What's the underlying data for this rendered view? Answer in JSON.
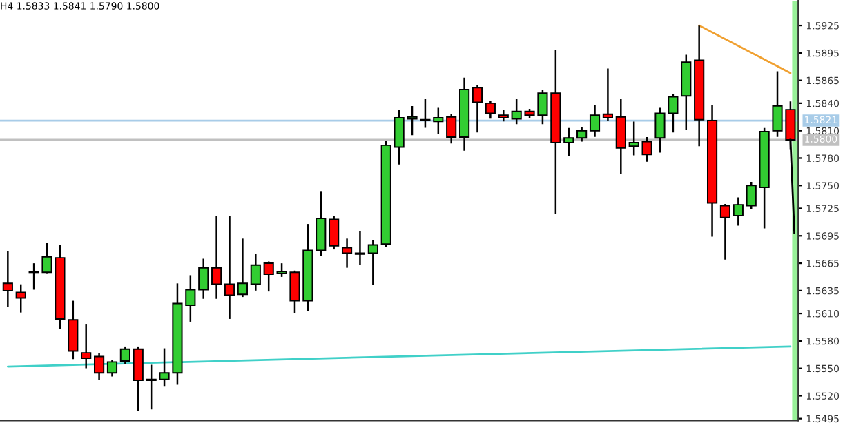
{
  "chart_data": {
    "type": "candlestick",
    "title": "H4 1.5833 1.5841 1.5790 1.5800",
    "categories": [
      null,
      null,
      null,
      null,
      null,
      null,
      null,
      null,
      null,
      null,
      null,
      null,
      null,
      null,
      null,
      null,
      null,
      null,
      null,
      null,
      null,
      null,
      null,
      null,
      null,
      null,
      null,
      null,
      null,
      null,
      null,
      null,
      null,
      null,
      null,
      null,
      null,
      null,
      null,
      null,
      null,
      null,
      null,
      null,
      null,
      null,
      null,
      null,
      null,
      null,
      null,
      null,
      null,
      null,
      null,
      null,
      null,
      null,
      null,
      null,
      null
    ],
    "ohlc": [
      [
        1.5643,
        1.5677,
        1.5618,
        1.5635
      ],
      [
        1.5633,
        1.5641,
        1.5612,
        1.5627
      ],
      [
        1.5656,
        1.5664,
        1.5637,
        1.5655
      ],
      [
        1.5655,
        1.5686,
        1.5655,
        1.5672
      ],
      [
        1.5671,
        1.5684,
        1.5594,
        1.5604
      ],
      [
        1.5603,
        1.5623,
        1.5561,
        1.5569
      ],
      [
        1.5567,
        1.5597,
        1.5551,
        1.5561
      ],
      [
        1.5563,
        1.5566,
        1.5538,
        1.5545
      ],
      [
        1.5545,
        1.5558,
        1.5542,
        1.5557
      ],
      [
        1.5558,
        1.5573,
        1.5556,
        1.5571
      ],
      [
        1.5571,
        1.5573,
        1.5504,
        1.5537
      ],
      [
        1.5538,
        1.5553,
        1.5506,
        1.5537
      ],
      [
        1.5538,
        1.5571,
        1.5531,
        1.5545
      ],
      [
        1.5545,
        1.5642,
        1.5533,
        1.5621
      ],
      [
        1.5619,
        1.5651,
        1.5602,
        1.5636
      ],
      [
        1.5636,
        1.5669,
        1.5627,
        1.566
      ],
      [
        1.566,
        1.5716,
        1.5627,
        1.5642
      ],
      [
        1.5642,
        1.5716,
        1.5605,
        1.563
      ],
      [
        1.5631,
        1.5691,
        1.5629,
        1.5643
      ],
      [
        1.5642,
        1.5674,
        1.5636,
        1.5663
      ],
      [
        1.5665,
        1.5666,
        1.5635,
        1.5653
      ],
      [
        1.5654,
        1.5664,
        1.5651,
        1.5656
      ],
      [
        1.5655,
        1.5656,
        1.5611,
        1.5624
      ],
      [
        1.5624,
        1.5707,
        1.5614,
        1.5679
      ],
      [
        1.5679,
        1.5743,
        1.5674,
        1.5714
      ],
      [
        1.5713,
        1.5716,
        1.5681,
        1.5684
      ],
      [
        1.5682,
        1.5691,
        1.5661,
        1.5676
      ],
      [
        1.5676,
        1.5699,
        1.5664,
        1.5675
      ],
      [
        1.5676,
        1.5689,
        1.5642,
        1.5685
      ],
      [
        1.5686,
        1.5798,
        1.5684,
        1.5794
      ],
      [
        1.5792,
        1.5832,
        1.5774,
        1.5824
      ],
      [
        1.5823,
        1.5836,
        1.5806,
        1.5825
      ],
      [
        1.5822,
        1.5844,
        1.5814,
        1.5821
      ],
      [
        1.582,
        1.5834,
        1.5807,
        1.5824
      ],
      [
        1.5825,
        1.5827,
        1.5797,
        1.5803
      ],
      [
        1.5803,
        1.5867,
        1.5789,
        1.5855
      ],
      [
        1.5857,
        1.5859,
        1.5809,
        1.5841
      ],
      [
        1.584,
        1.5842,
        1.5824,
        1.5829
      ],
      [
        1.5827,
        1.5832,
        1.5821,
        1.5824
      ],
      [
        1.5823,
        1.5844,
        1.5818,
        1.5831
      ],
      [
        1.5831,
        1.5833,
        1.5825,
        1.5827
      ],
      [
        1.5827,
        1.5854,
        1.5818,
        1.5851
      ],
      [
        1.5851,
        1.5897,
        1.572,
        1.5797
      ],
      [
        1.5797,
        1.5812,
        1.5783,
        1.5802
      ],
      [
        1.5802,
        1.5813,
        1.5799,
        1.581
      ],
      [
        1.581,
        1.5837,
        1.5804,
        1.5827
      ],
      [
        1.5828,
        1.5877,
        1.5822,
        1.5824
      ],
      [
        1.5825,
        1.5844,
        1.5764,
        1.5791
      ],
      [
        1.5793,
        1.5819,
        1.5784,
        1.5797
      ],
      [
        1.5798,
        1.5802,
        1.5777,
        1.5784
      ],
      [
        1.5802,
        1.5834,
        1.5787,
        1.5829
      ],
      [
        1.5829,
        1.5849,
        1.5809,
        1.5847
      ],
      [
        1.5848,
        1.5892,
        1.5812,
        1.5885
      ],
      [
        1.5887,
        1.5924,
        1.5794,
        1.5822
      ],
      [
        1.5821,
        1.5837,
        1.5695,
        1.5731
      ],
      [
        1.5728,
        1.5729,
        1.567,
        1.5715
      ],
      [
        1.5717,
        1.5736,
        1.5707,
        1.5729
      ],
      [
        1.5728,
        1.5753,
        1.5725,
        1.575
      ],
      [
        1.5748,
        1.5812,
        1.5704,
        1.5809
      ],
      [
        1.581,
        1.5874,
        1.5804,
        1.5837
      ],
      [
        1.5833,
        1.5841,
        1.579,
        1.58
      ]
    ],
    "series": [
      {
        "type": "line",
        "color": "#f0a030",
        "values": [
          null,
          null,
          null,
          null,
          null,
          null,
          null,
          null,
          null,
          null,
          null,
          null,
          null,
          null,
          null,
          null,
          null,
          null,
          null,
          null,
          null,
          null,
          null,
          null,
          null,
          null,
          null,
          null,
          null,
          null,
          null,
          null,
          null,
          null,
          null,
          null,
          null,
          null,
          null,
          null,
          null,
          null,
          null,
          null,
          null,
          null,
          null,
          null,
          null,
          null,
          null,
          null,
          null,
          1.5925,
          null,
          null,
          null,
          null,
          null,
          null,
          1.5873
        ]
      },
      {
        "type": "line",
        "color": "#40d0c8",
        "values": [
          1.5552,
          null,
          null,
          null,
          null,
          null,
          null,
          null,
          null,
          null,
          null,
          null,
          null,
          null,
          null,
          null,
          null,
          null,
          null,
          null,
          null,
          null,
          null,
          null,
          null,
          null,
          null,
          null,
          null,
          null,
          null,
          null,
          null,
          null,
          null,
          null,
          null,
          null,
          null,
          null,
          null,
          null,
          null,
          null,
          null,
          null,
          null,
          null,
          null,
          null,
          null,
          null,
          null,
          null,
          null,
          null,
          null,
          null,
          null,
          null,
          1.5574
        ]
      }
    ],
    "ylim": [
      1.5493,
      1.5952
    ],
    "yticks": [
      1.5925,
      1.5895,
      1.5865,
      {
        "value": 1.584,
        "label": "1.5840"
      },
      {
        "value": 1.581,
        "label": "1.5810"
      },
      {
        "value": 1.578,
        "label": "1.5780"
      },
      {
        "value": 1.575,
        "label": "1.5750"
      },
      1.5725,
      1.5695,
      1.5665,
      1.5635,
      {
        "value": 1.561,
        "label": "1.5610"
      },
      {
        "value": 1.558,
        "label": "1.5580"
      },
      {
        "value": 1.555,
        "label": "1.5550"
      },
      {
        "value": 1.552,
        "label": "1.5520"
      },
      1.5495
    ],
    "ref_lines": [
      {
        "axis": "y",
        "value": 1.5821,
        "label": "1.5821",
        "color": "#a8cce8"
      },
      {
        "axis": "y",
        "value": 1.58,
        "label": "1.5800",
        "color": "#c0c0c0"
      }
    ],
    "tick_labels": "y",
    "grid": false,
    "legend": false
  }
}
